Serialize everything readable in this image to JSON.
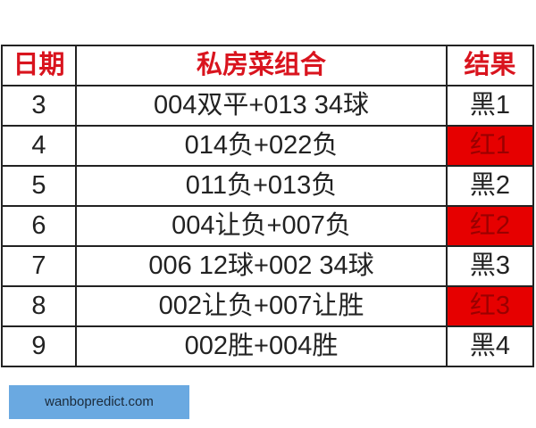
{
  "table": {
    "headers": [
      "日期",
      "私房菜组合",
      "结果"
    ],
    "rows": [
      {
        "date": "3",
        "combo": "004双平+013 34球",
        "result": "黑1",
        "result_color": "black"
      },
      {
        "date": "4",
        "combo": "014负+022负",
        "result": "红1",
        "result_color": "red"
      },
      {
        "date": "5",
        "combo": "011负+013负",
        "result": "黑2",
        "result_color": "black"
      },
      {
        "date": "6",
        "combo": "004让负+007负",
        "result": "红2",
        "result_color": "red"
      },
      {
        "date": "7",
        "combo": "006 12球+002 34球",
        "result": "黑3",
        "result_color": "black"
      },
      {
        "date": "8",
        "combo": "002让负+007让胜",
        "result": "红3",
        "result_color": "red"
      },
      {
        "date": "9",
        "combo": "002胜+004胜",
        "result": "黑4",
        "result_color": "black"
      }
    ]
  },
  "colors": {
    "header_text": "#d9141e",
    "red_cell": "#e60000",
    "badge_bg": "#6aa9e1"
  },
  "watermark": {
    "text": "wanbopredict.com"
  }
}
